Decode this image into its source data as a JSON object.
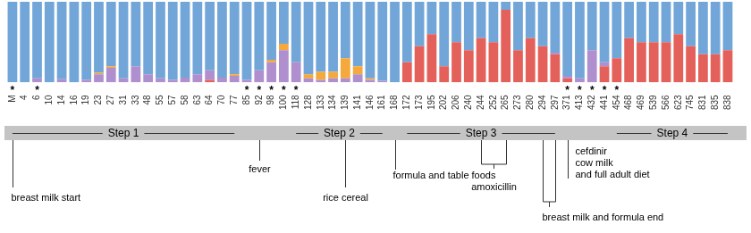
{
  "chart_data": {
    "type": "bar",
    "stacked": true,
    "grid": false,
    "tick_labels": "x",
    "categories": [
      "M",
      "4",
      "6",
      "10",
      "14",
      "16",
      "19",
      "23",
      "27",
      "31",
      "33",
      "48",
      "55",
      "57",
      "58",
      "63",
      "64",
      "70",
      "77",
      "85",
      "92",
      "98",
      "100",
      "118",
      "128",
      "133",
      "134",
      "139",
      "141",
      "146",
      "161",
      "168",
      "172",
      "173",
      "195",
      "202",
      "206",
      "240",
      "244",
      "252",
      "265",
      "273",
      "280",
      "294",
      "297",
      "371",
      "413",
      "432",
      "441",
      "454",
      "468",
      "469",
      "539",
      "566",
      "623",
      "745",
      "831",
      "835",
      "838"
    ],
    "ylim": [
      0,
      100
    ],
    "series": [
      {
        "color": "#e4615b",
        "values": [
          0,
          0,
          0,
          0,
          0,
          0,
          0,
          0,
          0,
          0,
          0,
          0,
          0,
          0,
          0,
          0,
          3,
          0,
          0,
          0,
          0,
          0,
          0,
          0,
          0,
          0,
          0,
          0,
          0,
          0,
          0,
          0,
          25,
          45,
          60,
          20,
          50,
          40,
          55,
          50,
          90,
          40,
          55,
          45,
          35,
          5,
          0,
          0,
          20,
          30,
          55,
          50,
          50,
          50,
          60,
          45,
          35,
          35,
          40
        ]
      },
      {
        "color": "#b08fcf",
        "values": [
          0,
          0,
          5,
          0,
          4,
          0,
          3,
          10,
          18,
          5,
          20,
          10,
          5,
          3,
          6,
          10,
          12,
          6,
          8,
          3,
          15,
          25,
          40,
          25,
          5,
          3,
          5,
          5,
          10,
          3,
          2,
          0,
          0,
          0,
          0,
          0,
          0,
          0,
          0,
          0,
          0,
          0,
          0,
          0,
          2,
          3,
          5,
          40,
          5,
          0,
          0,
          0,
          0,
          0,
          0,
          0,
          0,
          0,
          0
        ]
      },
      {
        "color": "#f5a83b",
        "values": [
          0,
          0,
          0,
          0,
          0,
          0,
          0,
          2,
          2,
          0,
          0,
          0,
          0,
          0,
          0,
          0,
          0,
          0,
          2,
          0,
          0,
          3,
          8,
          0,
          5,
          10,
          8,
          25,
          10,
          2,
          0,
          0,
          0,
          0,
          0,
          0,
          0,
          0,
          0,
          0,
          0,
          0,
          0,
          0,
          0,
          0,
          0,
          0,
          0,
          0,
          0,
          0,
          0,
          0,
          0,
          0,
          0,
          0,
          0
        ]
      },
      {
        "color": "#72a6d9",
        "values": [
          100,
          100,
          95,
          100,
          96,
          100,
          97,
          88,
          80,
          95,
          80,
          90,
          95,
          97,
          94,
          90,
          85,
          94,
          90,
          97,
          85,
          72,
          52,
          75,
          90,
          87,
          87,
          70,
          80,
          95,
          98,
          100,
          75,
          55,
          40,
          80,
          50,
          60,
          45,
          50,
          10,
          60,
          45,
          55,
          63,
          92,
          95,
          60,
          75,
          70,
          45,
          50,
          50,
          50,
          40,
          55,
          65,
          65,
          60
        ]
      }
    ],
    "starred": {
      "text": "*",
      "at": [
        "M",
        "6",
        "85",
        "92",
        "98",
        "100",
        "118",
        "371",
        "413",
        "432",
        "441",
        "454"
      ]
    },
    "timeline": {
      "steps": [
        {
          "label": "Step 1",
          "from": "M",
          "to": "77"
        },
        {
          "label": "Step 2",
          "from": "118",
          "to": "161"
        },
        {
          "label": "Step 3",
          "from": "172",
          "to": "297"
        },
        {
          "label": "Step 4",
          "from": "454",
          "to": "838"
        }
      ],
      "events": [
        {
          "lines": [
            "breast milk start"
          ],
          "at": [
            "M"
          ]
        },
        {
          "lines": [
            "fever"
          ],
          "at": [
            "92"
          ]
        },
        {
          "lines": [
            "rice cereal"
          ],
          "at": [
            "139"
          ]
        },
        {
          "lines": [
            "formula and table foods"
          ],
          "at": [
            "168"
          ]
        },
        {
          "lines": [
            "amoxicillin"
          ],
          "at": [
            "244",
            "265"
          ]
        },
        {
          "lines": [
            "breast milk and formula end"
          ],
          "at": [
            "294",
            "297"
          ]
        },
        {
          "lines": [
            "cefdinir",
            "cow milk",
            "and full adult diet"
          ],
          "at": [
            "371"
          ]
        }
      ]
    }
  }
}
